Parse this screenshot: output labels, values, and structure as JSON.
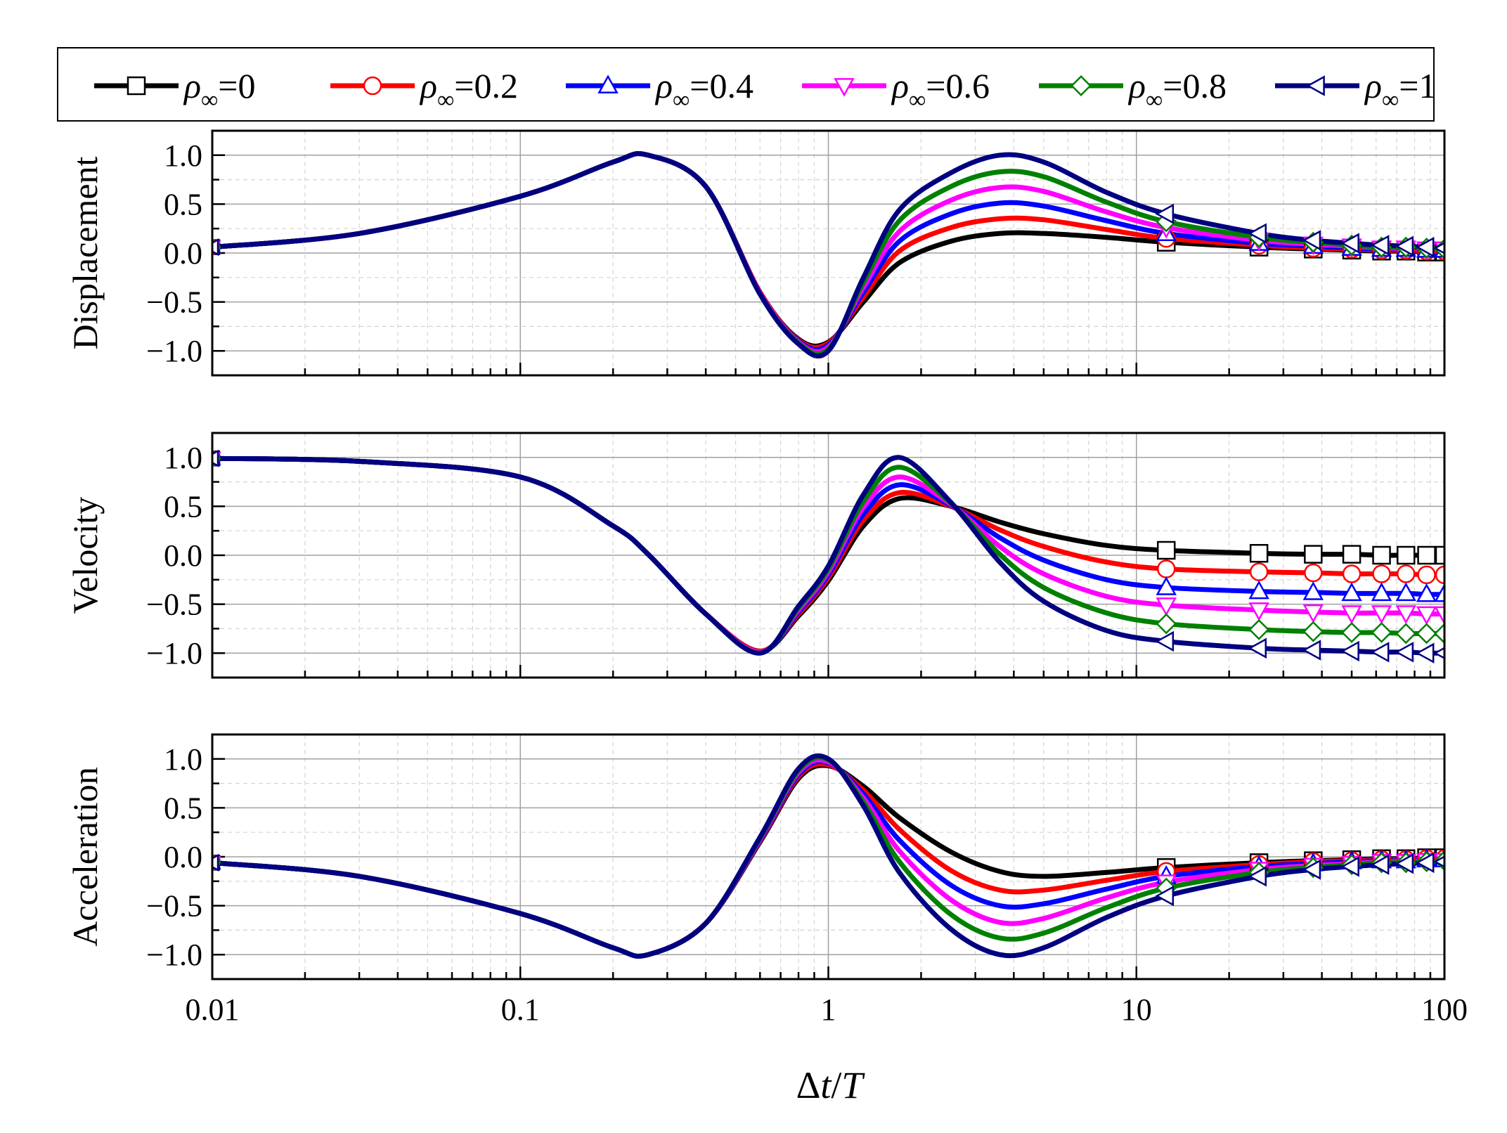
{
  "chart_data": {
    "type": "line",
    "x_scale": "log",
    "xlim": [
      0.01,
      100
    ],
    "ylim": [
      -1.25,
      1.25
    ],
    "xlabel": "Δt/T",
    "xticks": [
      0.01,
      0.1,
      1,
      10,
      100
    ],
    "xtick_labels": [
      "0.01",
      "0.1",
      "1",
      "10",
      "100"
    ],
    "yticks": [
      1.0,
      0.5,
      0.0,
      -0.5,
      -1.0
    ],
    "ytick_labels": [
      "1.0",
      "0.5",
      "0.0",
      "−0.5",
      "−1.0"
    ],
    "legend": {
      "placement": "top",
      "entries": [
        {
          "symbol": "ρ",
          "subscript": "∞",
          "value": "=0"
        },
        {
          "symbol": "ρ",
          "subscript": "∞",
          "value": "=0.2"
        },
        {
          "symbol": "ρ",
          "subscript": "∞",
          "value": "=0.4"
        },
        {
          "symbol": "ρ",
          "subscript": "∞",
          "value": "=0.6"
        },
        {
          "symbol": "ρ",
          "subscript": "∞",
          "value": "=0.8"
        },
        {
          "symbol": "ρ",
          "subscript": "∞",
          "value": "=1"
        }
      ]
    },
    "series_style": [
      {
        "name": "ρ∞=0",
        "color": "#000000",
        "marker": "square"
      },
      {
        "name": "ρ∞=0.2",
        "color": "#ff0000",
        "marker": "circle"
      },
      {
        "name": "ρ∞=0.4",
        "color": "#0000ff",
        "marker": "triangle-up"
      },
      {
        "name": "ρ∞=0.6",
        "color": "#ff00ff",
        "marker": "triangle-down"
      },
      {
        "name": "ρ∞=0.8",
        "color": "#008000",
        "marker": "diamond"
      },
      {
        "name": "ρ∞=1",
        "color": "#000080",
        "marker": "triangle-left"
      }
    ],
    "x": [
      0.01,
      0.03,
      0.1,
      0.2,
      0.26,
      0.4,
      0.6,
      0.8,
      1,
      1.3,
      1.7,
      2.5,
      3.6,
      5,
      8,
      12.5,
      25,
      37.5,
      50,
      62.5,
      75,
      87.5,
      100
    ],
    "marker_x": [
      12.5,
      25,
      37.5,
      50,
      62.5,
      75,
      87.5,
      100
    ],
    "panels": [
      {
        "ylabel": "Displacement",
        "series": [
          {
            "name": "ρ∞=0",
            "values": [
              0.06,
              0.2,
              0.58,
              0.93,
              1.0,
              0.68,
              -0.4,
              -0.88,
              -0.91,
              -0.5,
              -0.1,
              0.12,
              0.2,
              0.2,
              0.16,
              0.11,
              0.06,
              0.04,
              0.03,
              0.02,
              0.02,
              0.01,
              0.01
            ]
          },
          {
            "name": "ρ∞=0.2",
            "values": [
              0.06,
              0.2,
              0.58,
              0.93,
              1.0,
              0.68,
              -0.4,
              -0.89,
              -0.92,
              -0.45,
              0.02,
              0.26,
              0.35,
              0.34,
              0.24,
              0.15,
              0.08,
              0.05,
              0.04,
              0.03,
              0.03,
              0.02,
              0.02
            ]
          },
          {
            "name": "ρ∞=0.4",
            "values": [
              0.06,
              0.2,
              0.58,
              0.93,
              1.0,
              0.68,
              -0.41,
              -0.9,
              -0.94,
              -0.4,
              0.12,
              0.4,
              0.51,
              0.48,
              0.33,
              0.2,
              0.1,
              0.07,
              0.05,
              0.04,
              0.04,
              0.03,
              0.03
            ]
          },
          {
            "name": "ρ∞=0.6",
            "values": [
              0.06,
              0.2,
              0.58,
              0.93,
              1.0,
              0.68,
              -0.41,
              -0.91,
              -0.96,
              -0.35,
              0.22,
              0.54,
              0.67,
              0.63,
              0.42,
              0.26,
              0.13,
              0.09,
              0.07,
              0.05,
              0.05,
              0.04,
              0.04
            ]
          },
          {
            "name": "ρ∞=0.8",
            "values": [
              0.06,
              0.2,
              0.58,
              0.93,
              1.0,
              0.68,
              -0.42,
              -0.92,
              -0.98,
              -0.3,
              0.33,
              0.68,
              0.83,
              0.78,
              0.52,
              0.32,
              0.16,
              0.11,
              0.08,
              0.06,
              0.06,
              0.05,
              0.04
            ]
          },
          {
            "name": "ρ∞=1",
            "values": [
              0.06,
              0.2,
              0.58,
              0.93,
              1.0,
              0.68,
              -0.42,
              -0.93,
              -1.0,
              -0.25,
              0.44,
              0.82,
              1.0,
              0.93,
              0.62,
              0.4,
              0.2,
              0.13,
              0.1,
              0.08,
              0.07,
              0.06,
              0.05
            ]
          }
        ]
      },
      {
        "ylabel": "Velocity",
        "series": [
          {
            "name": "ρ∞=0",
            "values": [
              0.99,
              0.96,
              0.8,
              0.3,
              0.01,
              -0.6,
              -0.98,
              -0.62,
              -0.26,
              0.3,
              0.58,
              0.5,
              0.34,
              0.22,
              0.1,
              0.05,
              0.02,
              0.01,
              0.01,
              0.0,
              0.0,
              0.0,
              0.0
            ]
          },
          {
            "name": "ρ∞=0.2",
            "values": [
              0.99,
              0.96,
              0.8,
              0.3,
              0.01,
              -0.6,
              -0.98,
              -0.6,
              -0.23,
              0.36,
              0.64,
              0.5,
              0.26,
              0.09,
              -0.07,
              -0.14,
              -0.17,
              -0.18,
              -0.19,
              -0.19,
              -0.19,
              -0.2,
              -0.2
            ]
          },
          {
            "name": "ρ∞=0.4",
            "values": [
              0.99,
              0.96,
              0.8,
              0.3,
              0.01,
              -0.6,
              -0.99,
              -0.58,
              -0.2,
              0.42,
              0.72,
              0.51,
              0.18,
              -0.05,
              -0.25,
              -0.33,
              -0.37,
              -0.38,
              -0.39,
              -0.39,
              -0.39,
              -0.4,
              -0.4
            ]
          },
          {
            "name": "ρ∞=0.6",
            "values": [
              0.99,
              0.96,
              0.8,
              0.3,
              0.01,
              -0.6,
              -0.99,
              -0.56,
              -0.17,
              0.49,
              0.8,
              0.52,
              0.09,
              -0.19,
              -0.42,
              -0.51,
              -0.56,
              -0.58,
              -0.59,
              -0.59,
              -0.59,
              -0.6,
              -0.6
            ]
          },
          {
            "name": "ρ∞=0.8",
            "values": [
              0.99,
              0.96,
              0.8,
              0.3,
              0.01,
              -0.6,
              -1.0,
              -0.54,
              -0.14,
              0.55,
              0.9,
              0.53,
              0.01,
              -0.33,
              -0.59,
              -0.7,
              -0.76,
              -0.78,
              -0.79,
              -0.79,
              -0.8,
              -0.8,
              -0.8
            ]
          },
          {
            "name": "ρ∞=1",
            "values": [
              0.99,
              0.96,
              0.8,
              0.3,
              0.01,
              -0.6,
              -1.0,
              -0.52,
              -0.11,
              0.62,
              1.0,
              0.54,
              -0.07,
              -0.47,
              -0.77,
              -0.88,
              -0.95,
              -0.97,
              -0.98,
              -0.99,
              -0.99,
              -1.0,
              -1.0
            ]
          }
        ]
      },
      {
        "ylabel": "Acceleration",
        "series": [
          {
            "name": "ρ∞=0",
            "values": [
              -0.06,
              -0.2,
              -0.58,
              -0.93,
              -1.0,
              -0.68,
              0.15,
              0.8,
              0.93,
              0.72,
              0.4,
              0.05,
              -0.15,
              -0.2,
              -0.16,
              -0.11,
              -0.06,
              -0.04,
              -0.03,
              -0.02,
              -0.02,
              -0.01,
              -0.01
            ]
          },
          {
            "name": "ρ∞=0.2",
            "values": [
              -0.06,
              -0.2,
              -0.58,
              -0.93,
              -1.0,
              -0.68,
              0.16,
              0.82,
              0.94,
              0.68,
              0.28,
              -0.14,
              -0.34,
              -0.34,
              -0.24,
              -0.15,
              -0.08,
              -0.05,
              -0.04,
              -0.03,
              -0.03,
              -0.02,
              -0.02
            ]
          },
          {
            "name": "ρ∞=0.4",
            "values": [
              -0.06,
              -0.2,
              -0.58,
              -0.93,
              -1.0,
              -0.68,
              0.17,
              0.84,
              0.96,
              0.64,
              0.17,
              -0.29,
              -0.5,
              -0.48,
              -0.33,
              -0.2,
              -0.1,
              -0.07,
              -0.05,
              -0.04,
              -0.04,
              -0.03,
              -0.03
            ]
          },
          {
            "name": "ρ∞=0.6",
            "values": [
              -0.06,
              -0.2,
              -0.58,
              -0.93,
              -1.0,
              -0.68,
              0.18,
              0.86,
              0.97,
              0.6,
              0.06,
              -0.44,
              -0.67,
              -0.63,
              -0.42,
              -0.26,
              -0.13,
              -0.09,
              -0.07,
              -0.05,
              -0.05,
              -0.04,
              -0.04
            ]
          },
          {
            "name": "ρ∞=0.8",
            "values": [
              -0.06,
              -0.2,
              -0.58,
              -0.93,
              -1.0,
              -0.68,
              0.19,
              0.88,
              0.99,
              0.56,
              -0.05,
              -0.59,
              -0.83,
              -0.78,
              -0.52,
              -0.32,
              -0.16,
              -0.11,
              -0.08,
              -0.06,
              -0.06,
              -0.05,
              -0.04
            ]
          },
          {
            "name": "ρ∞=1",
            "values": [
              -0.06,
              -0.2,
              -0.58,
              -0.93,
              -1.0,
              -0.68,
              0.2,
              0.9,
              1.0,
              0.52,
              -0.16,
              -0.74,
              -1.0,
              -0.93,
              -0.62,
              -0.4,
              -0.2,
              -0.13,
              -0.1,
              -0.08,
              -0.07,
              -0.06,
              -0.05
            ]
          }
        ]
      }
    ]
  }
}
